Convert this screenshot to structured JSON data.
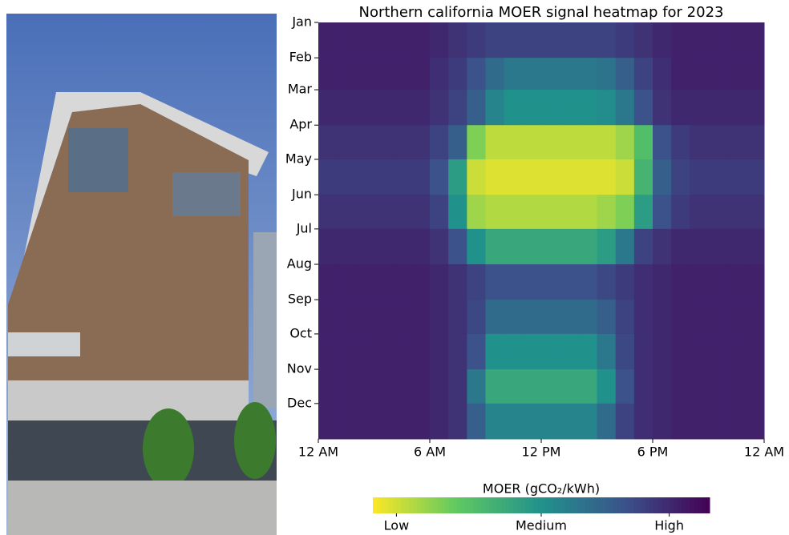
{
  "chart_data": {
    "type": "heatmap",
    "title": "Northern california MOER signal heatmap for 2023",
    "colorbar_label": "MOER (gCO₂/kWh)",
    "colorscale": [
      "#fde725",
      "#5ec962",
      "#21918c",
      "#3b528b",
      "#440154"
    ],
    "clim": [
      0,
      1
    ],
    "cticks": [
      {
        "value": 0.07,
        "label": "Low"
      },
      {
        "value": 0.5,
        "label": "Medium"
      },
      {
        "value": 0.88,
        "label": "High"
      }
    ],
    "xlim": [
      0,
      24
    ],
    "xticks": [
      {
        "value": 0,
        "label": "12 AM"
      },
      {
        "value": 6,
        "label": "6 AM"
      },
      {
        "value": 12,
        "label": "12 PM"
      },
      {
        "value": 18,
        "label": "6 PM"
      },
      {
        "value": 24,
        "label": "12 AM"
      }
    ],
    "ylim": [
      0,
      365
    ],
    "yticks": [
      {
        "value": 0,
        "label": "Jan"
      },
      {
        "value": 31,
        "label": "Feb"
      },
      {
        "value": 59,
        "label": "Mar"
      },
      {
        "value": 90,
        "label": "Apr"
      },
      {
        "value": 120,
        "label": "May"
      },
      {
        "value": 151,
        "label": "Jun"
      },
      {
        "value": 181,
        "label": "Jul"
      },
      {
        "value": 212,
        "label": "Aug"
      },
      {
        "value": 243,
        "label": "Sep"
      },
      {
        "value": 273,
        "label": "Oct"
      },
      {
        "value": 304,
        "label": "Nov"
      },
      {
        "value": 334,
        "label": "Dec"
      }
    ],
    "values": [
      [
        0.9,
        0.9,
        0.9,
        0.9,
        0.9,
        0.9,
        0.88,
        0.85,
        0.82,
        0.8,
        0.8,
        0.8,
        0.8,
        0.8,
        0.8,
        0.8,
        0.82,
        0.85,
        0.88,
        0.9,
        0.9,
        0.9,
        0.9,
        0.9
      ],
      [
        0.9,
        0.9,
        0.9,
        0.9,
        0.9,
        0.9,
        0.86,
        0.82,
        0.75,
        0.65,
        0.6,
        0.6,
        0.6,
        0.6,
        0.6,
        0.62,
        0.7,
        0.8,
        0.86,
        0.9,
        0.9,
        0.9,
        0.9,
        0.9
      ],
      [
        0.88,
        0.88,
        0.88,
        0.88,
        0.88,
        0.88,
        0.85,
        0.8,
        0.7,
        0.55,
        0.5,
        0.5,
        0.5,
        0.5,
        0.5,
        0.52,
        0.6,
        0.75,
        0.85,
        0.88,
        0.88,
        0.88,
        0.88,
        0.88
      ],
      [
        0.85,
        0.85,
        0.85,
        0.85,
        0.85,
        0.85,
        0.8,
        0.7,
        0.2,
        0.1,
        0.1,
        0.1,
        0.1,
        0.1,
        0.1,
        0.1,
        0.15,
        0.3,
        0.75,
        0.82,
        0.85,
        0.85,
        0.85,
        0.85
      ],
      [
        0.82,
        0.82,
        0.82,
        0.82,
        0.82,
        0.82,
        0.75,
        0.45,
        0.08,
        0.05,
        0.05,
        0.05,
        0.05,
        0.05,
        0.05,
        0.05,
        0.08,
        0.35,
        0.7,
        0.8,
        0.82,
        0.82,
        0.82,
        0.82
      ],
      [
        0.85,
        0.85,
        0.85,
        0.85,
        0.85,
        0.85,
        0.8,
        0.5,
        0.15,
        0.12,
        0.12,
        0.12,
        0.12,
        0.12,
        0.12,
        0.15,
        0.2,
        0.45,
        0.75,
        0.82,
        0.85,
        0.85,
        0.85,
        0.85
      ],
      [
        0.88,
        0.88,
        0.88,
        0.88,
        0.88,
        0.88,
        0.85,
        0.75,
        0.5,
        0.4,
        0.4,
        0.4,
        0.4,
        0.4,
        0.4,
        0.45,
        0.6,
        0.8,
        0.85,
        0.88,
        0.88,
        0.88,
        0.88,
        0.88
      ],
      [
        0.9,
        0.9,
        0.9,
        0.9,
        0.9,
        0.9,
        0.88,
        0.85,
        0.8,
        0.75,
        0.75,
        0.75,
        0.75,
        0.75,
        0.75,
        0.78,
        0.82,
        0.86,
        0.88,
        0.9,
        0.9,
        0.9,
        0.9,
        0.9
      ],
      [
        0.9,
        0.9,
        0.9,
        0.9,
        0.9,
        0.9,
        0.88,
        0.85,
        0.78,
        0.65,
        0.65,
        0.65,
        0.65,
        0.65,
        0.65,
        0.7,
        0.8,
        0.86,
        0.88,
        0.9,
        0.9,
        0.9,
        0.9,
        0.9
      ],
      [
        0.9,
        0.9,
        0.9,
        0.9,
        0.9,
        0.9,
        0.88,
        0.85,
        0.75,
        0.5,
        0.5,
        0.5,
        0.5,
        0.5,
        0.5,
        0.6,
        0.78,
        0.86,
        0.88,
        0.9,
        0.9,
        0.9,
        0.9,
        0.9
      ],
      [
        0.9,
        0.9,
        0.9,
        0.9,
        0.9,
        0.9,
        0.88,
        0.85,
        0.6,
        0.4,
        0.4,
        0.4,
        0.4,
        0.4,
        0.4,
        0.5,
        0.75,
        0.86,
        0.88,
        0.9,
        0.9,
        0.9,
        0.9,
        0.9
      ],
      [
        0.9,
        0.9,
        0.9,
        0.9,
        0.9,
        0.9,
        0.88,
        0.85,
        0.7,
        0.55,
        0.55,
        0.55,
        0.55,
        0.55,
        0.55,
        0.65,
        0.8,
        0.86,
        0.88,
        0.9,
        0.9,
        0.9,
        0.9,
        0.9
      ]
    ]
  }
}
